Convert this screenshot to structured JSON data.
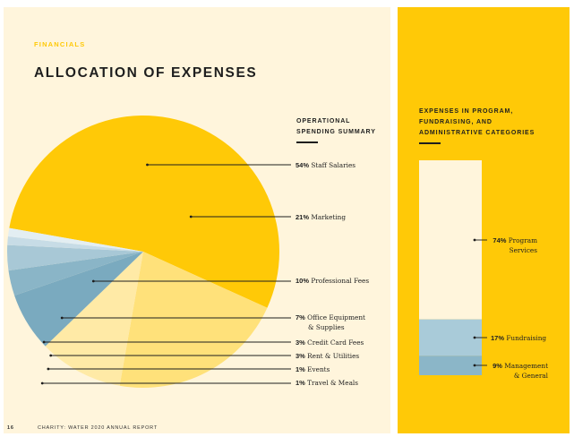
{
  "section": "FINANCIALS",
  "title": "ALLOCATION OF EXPENSES",
  "operational": {
    "heading_line1": "OPERATIONAL",
    "heading_line2": "SPENDING SUMMARY",
    "items": [
      {
        "pct": "54%",
        "label": "Staff Salaries",
        "label2": "",
        "value": 54,
        "color": "#ffc907"
      },
      {
        "pct": "21%",
        "label": "Marketing",
        "label2": "",
        "value": 21,
        "color": "#ffe17a"
      },
      {
        "pct": "10%",
        "label": "Professional Fees",
        "label2": "",
        "value": 10,
        "color": "#ffeaa6"
      },
      {
        "pct": "7%",
        "label": "Office Equipment",
        "label2": "& Supplies",
        "value": 7,
        "color": "#7aaabf"
      },
      {
        "pct": "3%",
        "label": "Credit Card Fees",
        "label2": "",
        "value": 3,
        "color": "#8ab5c7"
      },
      {
        "pct": "3%",
        "label": "Rent & Utilities",
        "label2": "",
        "value": 3,
        "color": "#a8c8d6"
      },
      {
        "pct": "1%",
        "label": "Events",
        "label2": "",
        "value": 1,
        "color": "#c7dce6"
      },
      {
        "pct": "1%",
        "label": "Travel & Meals",
        "label2": "",
        "value": 1,
        "color": "#e3eef2"
      }
    ]
  },
  "categories": {
    "heading_line1": "EXPENSES IN PROGRAM,",
    "heading_line2": "FUNDRAISING, AND",
    "heading_line3": "ADMINISTRATIVE CATEGORIES",
    "items": [
      {
        "pct": "74%",
        "label": "Program",
        "label2": "Services",
        "value": 74,
        "color": "#fff5dc"
      },
      {
        "pct": "17%",
        "label": "Fundraising",
        "label2": "",
        "value": 17,
        "color": "#a9cbd9"
      },
      {
        "pct": "9%",
        "label": "Management",
        "label2": "& General",
        "value": 9,
        "color": "#8bb6c8"
      }
    ]
  },
  "footer": {
    "page_number": "16",
    "report_name": "CHARITY: WATER 2020 ANNUAL REPORT"
  },
  "colors": {
    "yellow": "#ffc907",
    "cream": "#fff5dc",
    "ink": "#1e1e1e"
  }
}
